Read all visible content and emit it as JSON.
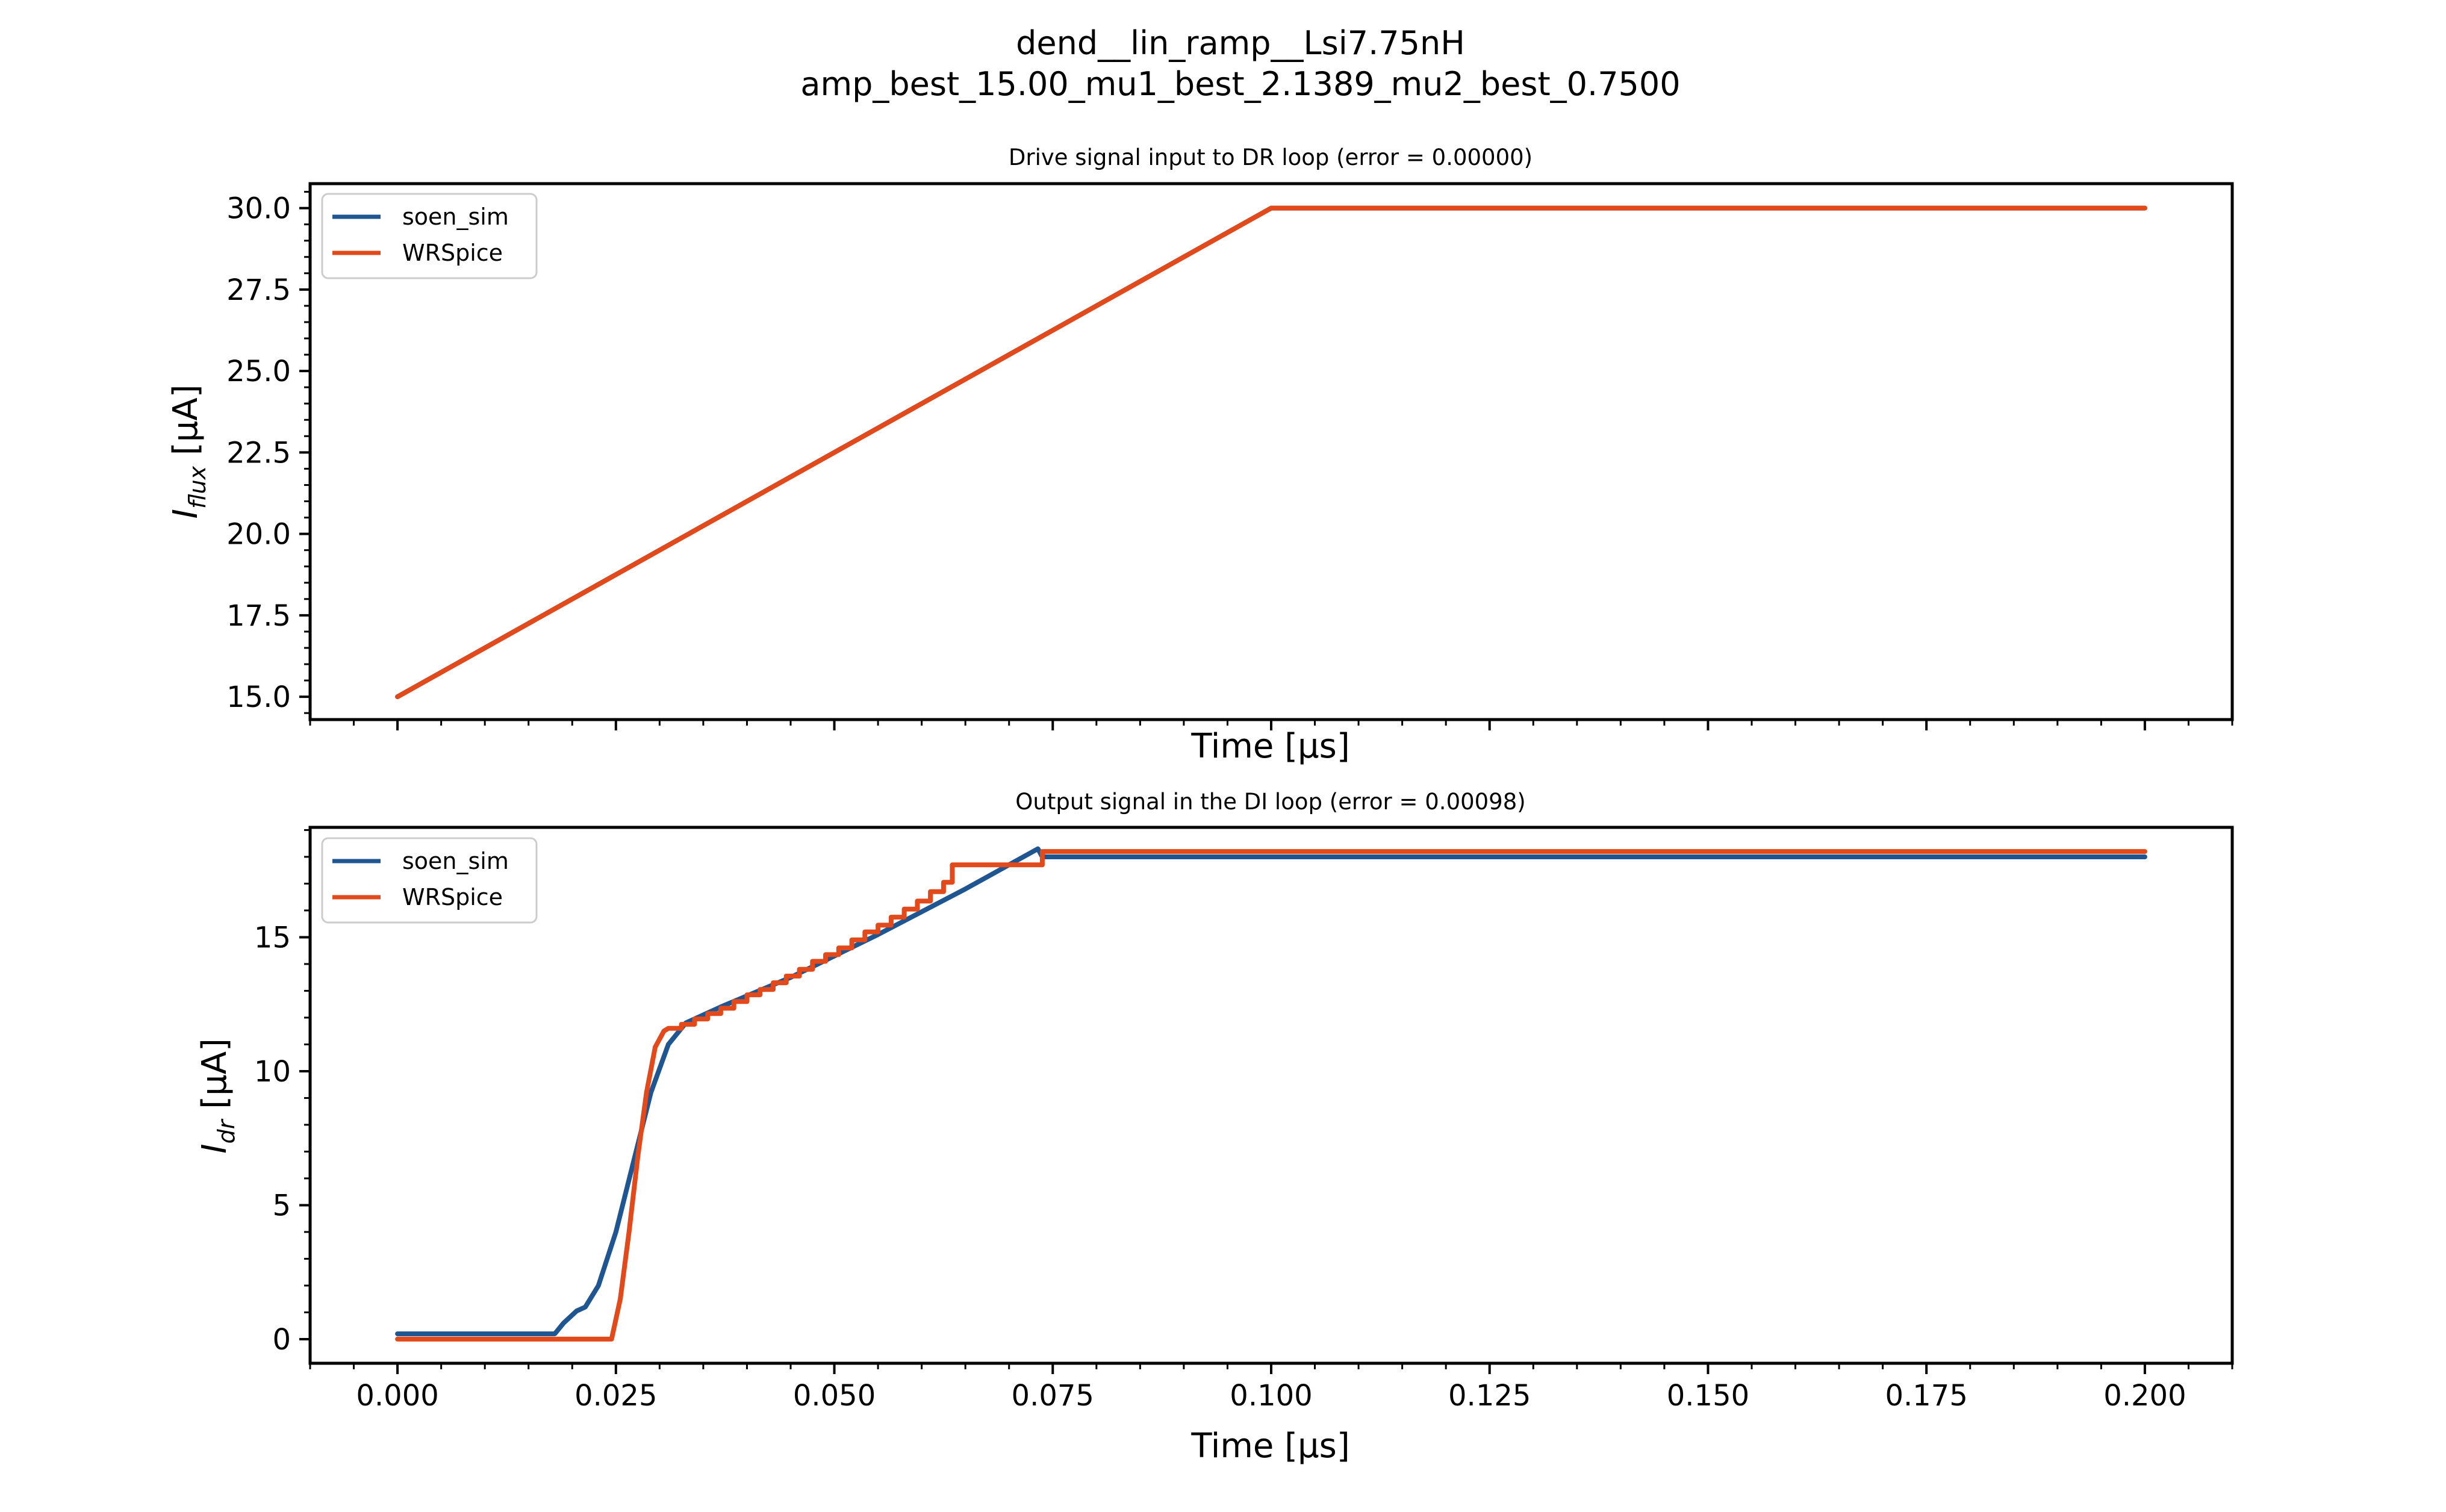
{
  "figure": {
    "suptitle_line1": "dend__lin_ramp__Lsi7.75nH",
    "suptitle_line2": "amp_best_15.00_mu1_best_2.1389_mu2_best_0.7500"
  },
  "colors": {
    "soen_sim": "#1f5591",
    "WRSpice": "#e24a1b"
  },
  "chart_data": [
    {
      "type": "line",
      "title": "Drive signal input to DR loop (error = 0.00000)",
      "xlabel": "Time [μs]",
      "ylabel_main": "I",
      "ylabel_sub": "flux",
      "ylabel_unit": " [μA]",
      "xlim": [
        -0.01,
        0.21
      ],
      "ylim": [
        14.3,
        30.75
      ],
      "xticks": [
        0.0,
        0.025,
        0.05,
        0.075,
        0.1,
        0.125,
        0.15,
        0.175,
        0.2
      ],
      "xtick_labels_visible": false,
      "yticks": [
        15.0,
        17.5,
        20.0,
        22.5,
        25.0,
        27.5,
        30.0
      ],
      "ytick_labels": [
        "15.0",
        "17.5",
        "20.0",
        "22.5",
        "25.0",
        "27.5",
        "30.0"
      ],
      "legend": {
        "placement": "upper-left",
        "entries": [
          "soen_sim",
          "WRSpice"
        ]
      },
      "series": [
        {
          "name": "soen_sim",
          "x": [
            0.0,
            0.1,
            0.2
          ],
          "y": [
            15.0,
            30.0,
            30.0
          ]
        },
        {
          "name": "WRSpice",
          "x": [
            0.0,
            0.1,
            0.2
          ],
          "y": [
            15.0,
            30.0,
            30.0
          ]
        }
      ]
    },
    {
      "type": "line",
      "title": "Output signal in the DI loop (error = 0.00098)",
      "xlabel": "Time [μs]",
      "ylabel_main": "I",
      "ylabel_sub": "dr",
      "ylabel_unit": " [μA]",
      "xlim": [
        -0.01,
        0.21
      ],
      "ylim": [
        -0.9,
        19.1
      ],
      "xticks": [
        0.0,
        0.025,
        0.05,
        0.075,
        0.1,
        0.125,
        0.15,
        0.175,
        0.2
      ],
      "xtick_labels_visible": true,
      "xtick_labels": [
        "0.000",
        "0.025",
        "0.050",
        "0.075",
        "0.100",
        "0.125",
        "0.150",
        "0.175",
        "0.200"
      ],
      "yticks": [
        0,
        5,
        10,
        15
      ],
      "ytick_labels": [
        "0",
        "5",
        "10",
        "15"
      ],
      "legend": {
        "placement": "upper-left",
        "entries": [
          "soen_sim",
          "WRSpice"
        ]
      },
      "series": [
        {
          "name": "soen_sim",
          "x": [
            0.0,
            0.018,
            0.019,
            0.0205,
            0.0215,
            0.023,
            0.025,
            0.027,
            0.029,
            0.031,
            0.033,
            0.035,
            0.037,
            0.045,
            0.055,
            0.065,
            0.0733,
            0.0738,
            0.2
          ],
          "y": [
            0.2,
            0.2,
            0.6,
            1.05,
            1.2,
            2.0,
            4.0,
            6.6,
            9.2,
            11.0,
            11.8,
            12.1,
            12.4,
            13.5,
            15.1,
            16.8,
            18.3,
            18.0,
            18.0
          ]
        },
        {
          "name": "WRSpice",
          "steps": [
            {
              "x": 0.031,
              "y": 11.6
            },
            {
              "x": 0.0325,
              "y": 11.75
            },
            {
              "x": 0.034,
              "y": 11.95
            },
            {
              "x": 0.0355,
              "y": 12.15
            },
            {
              "x": 0.037,
              "y": 12.35
            },
            {
              "x": 0.0385,
              "y": 12.6
            },
            {
              "x": 0.04,
              "y": 12.85
            },
            {
              "x": 0.0415,
              "y": 13.05
            },
            {
              "x": 0.043,
              "y": 13.3
            },
            {
              "x": 0.0445,
              "y": 13.55
            },
            {
              "x": 0.046,
              "y": 13.8
            },
            {
              "x": 0.0475,
              "y": 14.1
            },
            {
              "x": 0.049,
              "y": 14.35
            },
            {
              "x": 0.0505,
              "y": 14.6
            },
            {
              "x": 0.052,
              "y": 14.9
            },
            {
              "x": 0.0535,
              "y": 15.2
            },
            {
              "x": 0.055,
              "y": 15.45
            },
            {
              "x": 0.0565,
              "y": 15.75
            },
            {
              "x": 0.058,
              "y": 16.05
            },
            {
              "x": 0.0595,
              "y": 16.35
            },
            {
              "x": 0.061,
              "y": 16.7
            },
            {
              "x": 0.0625,
              "y": 17.05
            },
            {
              "x": 0.0635,
              "y": 17.7
            },
            {
              "x": 0.0738,
              "y": 18.2
            }
          ],
          "x": [
            0.0,
            0.0245,
            0.0255,
            0.0265,
            0.0275,
            0.0285,
            0.0295,
            0.0305,
            0.031
          ],
          "y": [
            0.0,
            0.0,
            1.5,
            4.0,
            6.8,
            9.2,
            10.9,
            11.5,
            11.6
          ],
          "end": {
            "x": 0.2,
            "y": 18.2
          }
        }
      ]
    }
  ]
}
